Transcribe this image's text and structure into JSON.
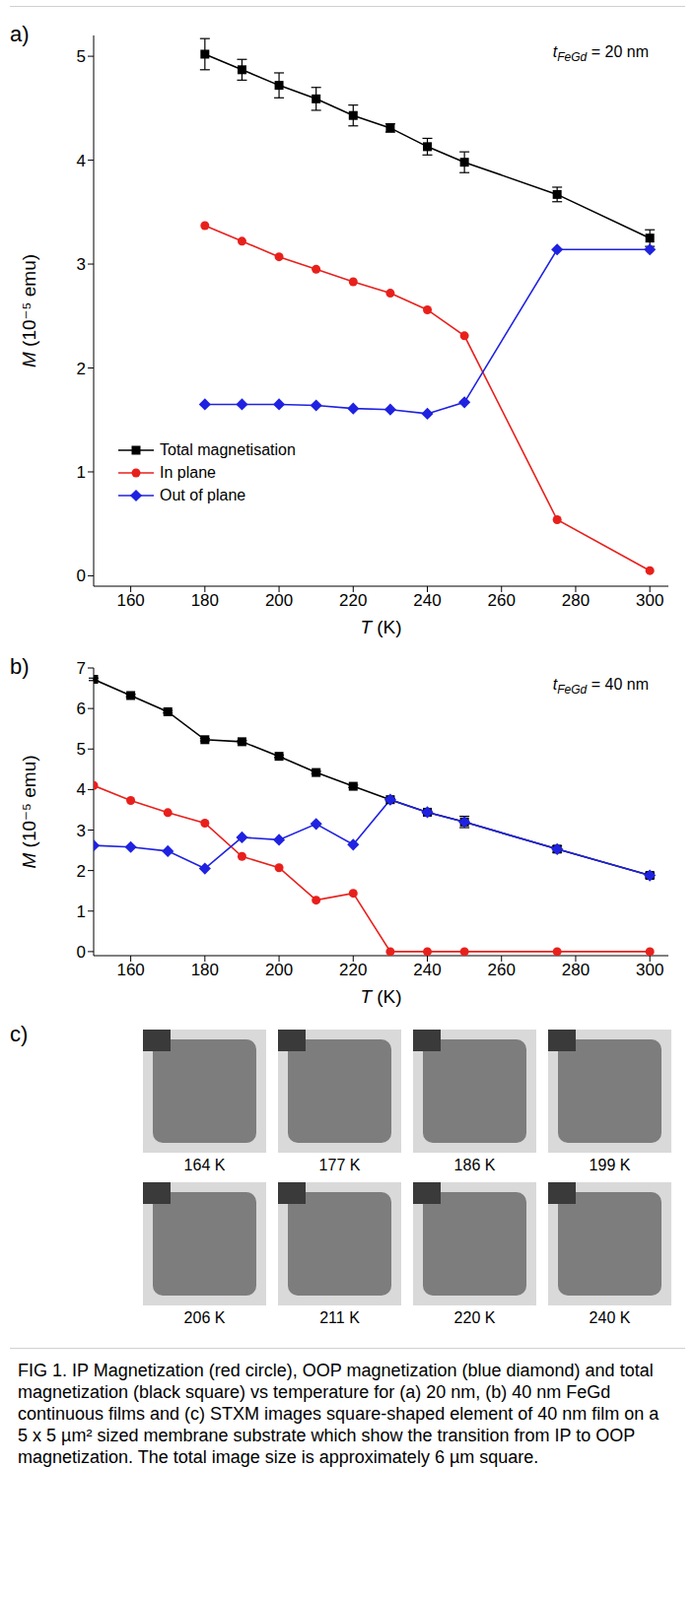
{
  "chart_data": [
    {
      "type": "line",
      "panel_label": "a)",
      "annotation": [
        "t",
        "FeGd",
        " = 20 nm"
      ],
      "x_label": "T (K)",
      "y_label": "M (10⁻⁵ emu)",
      "xlim": [
        150,
        305
      ],
      "xticks": [
        160,
        180,
        200,
        220,
        240,
        260,
        280,
        300
      ],
      "ylim": [
        -0.1,
        5.2
      ],
      "yticks": [
        0,
        1,
        2,
        3,
        4,
        5
      ],
      "legend": "lower left",
      "x": [
        180,
        190,
        200,
        210,
        220,
        230,
        240,
        250,
        275,
        300
      ],
      "series": [
        {
          "name": "Total magnetisation",
          "color": "#000000",
          "marker": "square",
          "values": [
            5.02,
            4.87,
            4.72,
            4.59,
            4.43,
            4.31,
            4.13,
            3.98,
            3.67,
            3.25
          ],
          "errors": [
            0.15,
            0.1,
            0.12,
            0.11,
            0.1,
            0.04,
            0.08,
            0.1,
            0.07,
            0.08
          ]
        },
        {
          "name": "In plane",
          "color": "#e8201c",
          "marker": "circle",
          "values": [
            3.37,
            3.22,
            3.07,
            2.95,
            2.83,
            2.72,
            2.56,
            2.31,
            0.54,
            0.05
          ]
        },
        {
          "name": "Out of plane",
          "color": "#1f22e0",
          "marker": "diamond",
          "values": [
            1.65,
            1.65,
            1.65,
            1.64,
            1.61,
            1.6,
            1.56,
            1.67,
            3.14,
            3.14
          ]
        }
      ]
    },
    {
      "type": "line",
      "panel_label": "b)",
      "annotation": [
        "t",
        "FeGd",
        " = 40 nm"
      ],
      "x_label": "T (K)",
      "y_label": "M (10⁻⁵ emu)",
      "xlim": [
        150,
        305
      ],
      "xticks": [
        160,
        180,
        200,
        220,
        240,
        260,
        280,
        300
      ],
      "ylim": [
        -0.1,
        7
      ],
      "yticks": [
        0,
        1,
        2,
        3,
        4,
        5,
        6,
        7
      ],
      "x": [
        150,
        160,
        170,
        180,
        190,
        200,
        210,
        220,
        230,
        240,
        250,
        275,
        300
      ],
      "series": [
        {
          "color": "#000000",
          "marker": "square",
          "values": [
            6.72,
            6.32,
            5.92,
            5.23,
            5.18,
            4.82,
            4.42,
            4.08,
            3.75,
            3.44,
            3.2,
            2.53,
            1.88
          ],
          "errors": [
            0.03,
            0.03,
            0.03,
            0.03,
            0.03,
            0.03,
            0.03,
            0.03,
            0.03,
            0.03,
            0.14,
            0.08,
            0.06
          ]
        },
        {
          "color": "#e8201c",
          "marker": "circle",
          "values": [
            4.1,
            3.73,
            3.43,
            3.17,
            2.35,
            2.07,
            1.27,
            1.44,
            0,
            0,
            0,
            0,
            0
          ]
        },
        {
          "color": "#1f22e0",
          "marker": "diamond",
          "values": [
            2.62,
            2.58,
            2.48,
            2.05,
            2.82,
            2.76,
            3.15,
            2.64,
            3.75,
            3.44,
            3.2,
            2.53,
            1.88
          ]
        }
      ]
    }
  ],
  "images": {
    "panel_label": "c)",
    "labels": [
      "164 K",
      "177 K",
      "186 K",
      "199 K",
      "206 K",
      "211 K",
      "220 K",
      "240 K"
    ]
  },
  "caption": "FIG 1. IP Magnetization (red circle), OOP magnetization (blue diamond) and total magnetization (black square) vs temperature for (a) 20 nm, (b) 40 nm FeGd continuous films and (c) STXM images square-shaped element of 40 nm film on a 5 x 5 µm² sized membrane substrate which show the transition from IP to OOP magnetization. The total image size is approximately 6 µm square."
}
